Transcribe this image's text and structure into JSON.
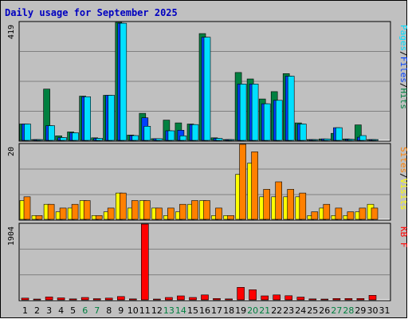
{
  "title": "Daily usage for September 2025",
  "colors": {
    "background": "#c0c0c0",
    "plot": "#c0c0c0",
    "title": "#0000c0",
    "hits": "#008040",
    "files": "#0040ff",
    "pages": "#00e0ff",
    "visits": "#ffff00",
    "sites": "#ff8000",
    "kbytes": "#ff0000",
    "grid": "#808080",
    "weekend": "#008040",
    "weekday": "#000000"
  },
  "chart_data": [
    {
      "type": "bar",
      "panel": "hits-files-pages",
      "ymax_label": "419",
      "ylim": [
        0,
        419
      ],
      "legend": [
        {
          "name": "Pages",
          "color_key": "pages"
        },
        {
          "name": "Files",
          "color_key": "files"
        },
        {
          "name": "Hits",
          "color_key": "hits"
        }
      ],
      "x": [
        "1",
        "2",
        "3",
        "4",
        "5",
        "6",
        "7",
        "8",
        "9",
        "10",
        "11",
        "12",
        "13",
        "14",
        "15",
        "16",
        "17",
        "18",
        "19",
        "20",
        "21",
        "22",
        "23",
        "24",
        "25",
        "26",
        "27",
        "28",
        "29",
        "30",
        "31"
      ],
      "weekend": [
        6,
        7,
        13,
        14,
        20,
        21,
        27,
        28
      ],
      "series": [
        {
          "name": "Hits",
          "color_key": "hits",
          "values": [
            58,
            2,
            182,
            16,
            30,
            157,
            9,
            160,
            419,
            19,
            96,
            6,
            72,
            62,
            58,
            379,
            9,
            2,
            241,
            218,
            147,
            173,
            237,
            62,
            2,
            5,
            25,
            5,
            55,
            2,
            0
          ]
        },
        {
          "name": "Files",
          "color_key": "files",
          "values": [
            58,
            2,
            52,
            10,
            27,
            155,
            7,
            160,
            416,
            17,
            80,
            6,
            34,
            36,
            56,
            366,
            7,
            2,
            200,
            200,
            130,
            142,
            228,
            58,
            2,
            5,
            45,
            4,
            11,
            2,
            0
          ]
        },
        {
          "name": "Pages",
          "color_key": "pages",
          "values": [
            58,
            2,
            52,
            10,
            27,
            155,
            7,
            160,
            416,
            17,
            50,
            6,
            34,
            16,
            56,
            366,
            7,
            2,
            200,
            200,
            130,
            142,
            228,
            58,
            2,
            5,
            45,
            4,
            17,
            2,
            0
          ]
        }
      ]
    },
    {
      "type": "bar",
      "panel": "visits-sites",
      "ymax_label": "20",
      "ylim": [
        0,
        20
      ],
      "legend": [
        {
          "name": "Sites",
          "color_key": "sites"
        },
        {
          "name": "Visits",
          "color_key": "visits"
        }
      ],
      "x": [
        "1",
        "2",
        "3",
        "4",
        "5",
        "6",
        "7",
        "8",
        "9",
        "10",
        "11",
        "12",
        "13",
        "14",
        "15",
        "16",
        "17",
        "18",
        "19",
        "20",
        "21",
        "22",
        "23",
        "24",
        "25",
        "26",
        "27",
        "28",
        "29",
        "30",
        "31"
      ],
      "series": [
        {
          "name": "Visits",
          "color_key": "visits",
          "values": [
            5,
            1,
            4,
            2,
            3,
            5,
            1,
            2,
            7,
            3,
            5,
            3,
            1,
            2,
            4,
            5,
            1,
            1,
            12,
            15,
            6,
            6,
            6,
            6,
            1,
            3,
            1,
            1,
            2,
            4,
            0
          ]
        },
        {
          "name": "Sites",
          "color_key": "sites",
          "values": [
            6,
            1,
            4,
            3,
            4,
            5,
            1,
            3,
            7,
            5,
            5,
            3,
            3,
            4,
            5,
            5,
            3,
            1,
            20,
            18,
            8,
            10,
            8,
            7,
            2,
            4,
            3,
            2,
            3,
            3,
            0
          ]
        }
      ]
    },
    {
      "type": "bar",
      "panel": "kbytes",
      "ymax_label": "1904",
      "ylim": [
        0,
        1904
      ],
      "legend": [
        {
          "name": "KB F",
          "color_key": "kbytes"
        }
      ],
      "x": [
        "1",
        "2",
        "3",
        "4",
        "5",
        "6",
        "7",
        "8",
        "9",
        "10",
        "11",
        "12",
        "13",
        "14",
        "15",
        "16",
        "17",
        "18",
        "19",
        "20",
        "21",
        "22",
        "23",
        "24",
        "25",
        "26",
        "27",
        "28",
        "29",
        "30",
        "31"
      ],
      "series": [
        {
          "name": "KB F",
          "color_key": "kbytes",
          "values": [
            45,
            15,
            75,
            50,
            25,
            60,
            30,
            45,
            85,
            25,
            1904,
            12,
            60,
            100,
            60,
            125,
            35,
            25,
            315,
            255,
            100,
            125,
            105,
            70,
            25,
            12,
            35,
            35,
            35,
            115,
            0
          ]
        }
      ]
    }
  ]
}
